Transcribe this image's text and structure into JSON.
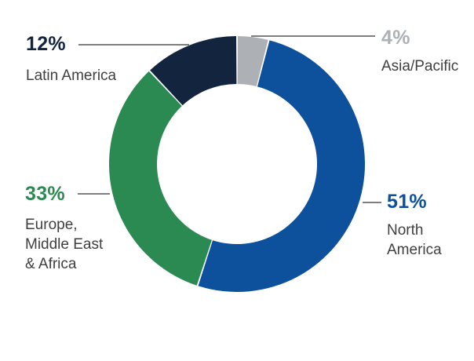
{
  "colors": {
    "north_america": "#0d509c",
    "europe_me_africa": "#2b8a52",
    "latin_america": "#13243f",
    "asia_pacific": "#adb1b5",
    "label_text": "#3f3f3f",
    "leader_line": "#555555"
  },
  "chart_data": {
    "type": "pie",
    "variant": "donut",
    "title": "",
    "unit": "%",
    "segments": [
      {
        "key": "asia_pacific",
        "name": "Asia/Pacific",
        "value": 4,
        "label": "4%",
        "color": "#adb1b5"
      },
      {
        "key": "north_america",
        "name": "North\nAmerica",
        "value": 51,
        "label": "51%",
        "color": "#0d509c"
      },
      {
        "key": "europe_me_africa",
        "name": "Europe,\nMiddle East\n& Africa",
        "value": 33,
        "label": "33%",
        "color": "#2b8a52"
      },
      {
        "key": "latin_america",
        "name": "Latin America",
        "value": 12,
        "label": "12%",
        "color": "#13243f"
      }
    ],
    "start": "12 o'clock",
    "direction": "clockwise",
    "legend": "none"
  }
}
